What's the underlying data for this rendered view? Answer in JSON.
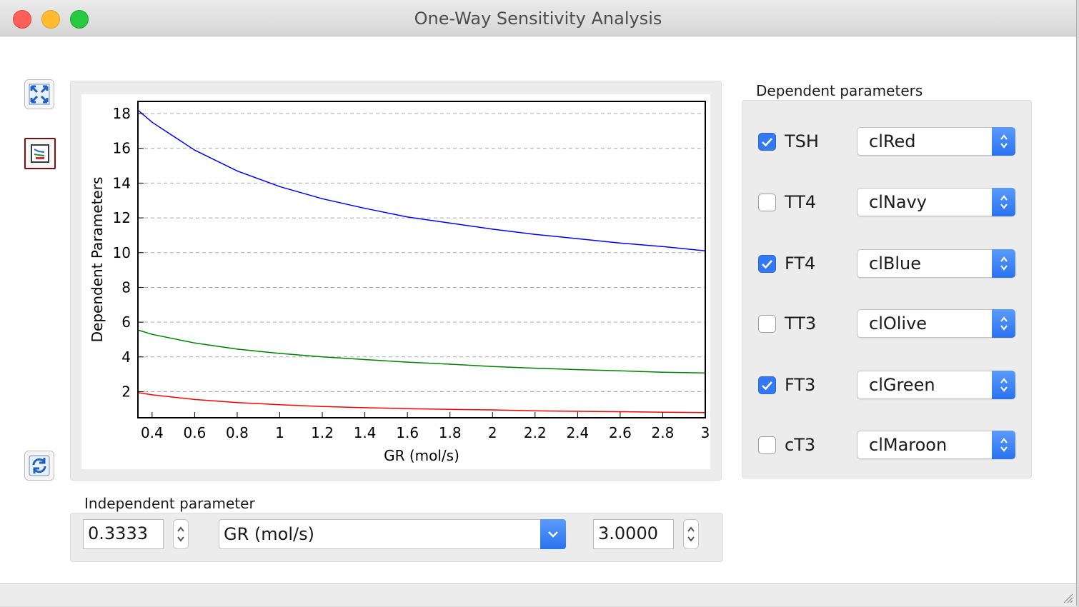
{
  "window": {
    "title": "One-Way Sensitivity Analysis"
  },
  "toolbar": {
    "buttons": [
      {
        "name": "expand-chart-button",
        "icon": "expand-arrows-icon"
      },
      {
        "name": "chart-style-button",
        "icon": "chart-icon"
      },
      {
        "name": "refresh-button",
        "icon": "refresh-icon"
      }
    ]
  },
  "chart_data": {
    "type": "line",
    "xlabel": "GR (mol/s)",
    "ylabel": "Dependent Parameters",
    "xlim": [
      0.3333,
      3.0
    ],
    "ylim": [
      0.5,
      18.7
    ],
    "xticks": [
      0.4,
      0.6,
      0.8,
      1,
      1.2,
      1.4,
      1.6,
      1.8,
      2,
      2.2,
      2.4,
      2.6,
      2.8,
      3
    ],
    "xtick_labels": [
      "0.4",
      "0.6",
      "0.8",
      "1",
      "1.2",
      "1.4",
      "1.6",
      "1.8",
      "2",
      "2.2",
      "2.4",
      "2.6",
      "2.8",
      "3"
    ],
    "yticks": [
      2,
      4,
      6,
      8,
      10,
      12,
      14,
      16,
      18
    ],
    "ytick_labels": [
      "2",
      "4",
      "6",
      "8",
      "10",
      "12",
      "14",
      "16",
      "18"
    ],
    "grid": "horizontal dashed",
    "x": [
      0.3333,
      0.4,
      0.6,
      0.8,
      1.0,
      1.2,
      1.4,
      1.6,
      1.8,
      2.0,
      2.2,
      2.4,
      2.6,
      2.8,
      3.0
    ],
    "series": [
      {
        "color": "#0000ff",
        "values": [
          18.2,
          17.5,
          15.9,
          14.7,
          13.8,
          13.1,
          12.55,
          12.05,
          11.7,
          11.35,
          11.05,
          10.8,
          10.55,
          10.35,
          10.1
        ]
      },
      {
        "color": "#008000",
        "values": [
          5.55,
          5.3,
          4.8,
          4.45,
          4.2,
          4.0,
          3.85,
          3.7,
          3.58,
          3.45,
          3.35,
          3.27,
          3.2,
          3.12,
          3.08
        ]
      },
      {
        "color": "#ff0000",
        "values": [
          1.95,
          1.82,
          1.55,
          1.37,
          1.25,
          1.15,
          1.08,
          1.02,
          0.98,
          0.95,
          0.9,
          0.87,
          0.85,
          0.82,
          0.8
        ]
      }
    ]
  },
  "dependent": {
    "label": "Dependent parameters",
    "items": [
      {
        "name": "TSH",
        "checked": true,
        "color": "clRed"
      },
      {
        "name": "TT4",
        "checked": false,
        "color": "clNavy"
      },
      {
        "name": "FT4",
        "checked": true,
        "color": "clBlue"
      },
      {
        "name": "TT3",
        "checked": false,
        "color": "clOlive"
      },
      {
        "name": "FT3",
        "checked": true,
        "color": "clGreen"
      },
      {
        "name": "cT3",
        "checked": false,
        "color": "clMaroon"
      }
    ]
  },
  "independent": {
    "label": "Independent parameter",
    "min_value": "0.3333",
    "parameter": "GR (mol/s)",
    "max_value": "3.0000"
  }
}
